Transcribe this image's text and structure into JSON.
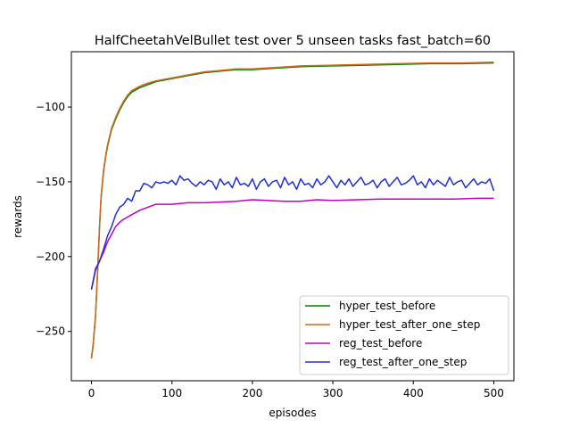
{
  "chart_data": {
    "type": "line",
    "title": "HalfCheetahVelBullet test over 5 unseen tasks fast_batch=60",
    "xlabel": "episodes",
    "ylabel": "rewards",
    "xlim": [
      -25,
      525
    ],
    "ylim": [
      -283,
      -63
    ],
    "xticks": [
      0,
      100,
      200,
      300,
      400,
      500
    ],
    "xtick_labels": [
      "0",
      "100",
      "200",
      "300",
      "400",
      "500"
    ],
    "yticks": [
      -250,
      -200,
      -150,
      -100
    ],
    "ytick_labels": [
      "−250",
      "−200",
      "−150",
      "−100"
    ],
    "grid": false,
    "legend_position": "lower-right",
    "series": [
      {
        "name": "hyper_test_before",
        "color": "#008000",
        "x": [
          0,
          2,
          5,
          8,
          10,
          12,
          15,
          18,
          20,
          25,
          30,
          35,
          40,
          45,
          50,
          60,
          70,
          80,
          90,
          100,
          120,
          140,
          160,
          180,
          200,
          230,
          260,
          300,
          340,
          380,
          420,
          460,
          500
        ],
        "y": [
          -268,
          -260,
          -240,
          -205,
          -180,
          -160,
          -143,
          -132,
          -126,
          -115,
          -108,
          -102,
          -97,
          -93,
          -90,
          -87,
          -85,
          -83,
          -82,
          -81,
          -79,
          -77,
          -76,
          -75,
          -75,
          -74,
          -73,
          -72.5,
          -72,
          -71.5,
          -71,
          -71,
          -70.5
        ]
      },
      {
        "name": "hyper_test_after_one_step",
        "color": "#d2691e",
        "x": [
          0,
          2,
          5,
          8,
          10,
          12,
          15,
          18,
          20,
          25,
          30,
          35,
          40,
          45,
          50,
          60,
          70,
          80,
          90,
          100,
          120,
          140,
          160,
          180,
          200,
          230,
          260,
          300,
          340,
          380,
          420,
          460,
          500
        ],
        "y": [
          -268,
          -259,
          -239,
          -204,
          -179,
          -159,
          -142,
          -131,
          -125,
          -114,
          -107,
          -101,
          -96,
          -92,
          -89,
          -86,
          -84,
          -82.5,
          -81.5,
          -80.5,
          -78.5,
          -76.5,
          -75.5,
          -74.5,
          -74.5,
          -73.5,
          -72.5,
          -72,
          -71.5,
          -71,
          -70.5,
          -70.5,
          -70
        ]
      },
      {
        "name": "reg_test_before",
        "color": "#bf00bf",
        "x": [
          0,
          5,
          10,
          15,
          20,
          25,
          30,
          35,
          40,
          50,
          60,
          70,
          80,
          90,
          100,
          120,
          140,
          160,
          180,
          200,
          220,
          240,
          260,
          280,
          300,
          330,
          360,
          390,
          420,
          450,
          480,
          500
        ],
        "y": [
          -222,
          -208,
          -203,
          -197,
          -190,
          -185,
          -180,
          -177,
          -175,
          -172,
          -169,
          -167,
          -165,
          -165,
          -165,
          -164,
          -164,
          -163.5,
          -163,
          -162,
          -162.5,
          -163,
          -163,
          -162,
          -162.5,
          -162,
          -161.5,
          -161.5,
          -161.5,
          -161.5,
          -161,
          -161
        ]
      },
      {
        "name": "reg_test_after_one_step",
        "color": "#1f30cc",
        "x": [
          0,
          5,
          10,
          15,
          20,
          25,
          30,
          35,
          40,
          45,
          50,
          55,
          60,
          65,
          70,
          75,
          80,
          85,
          90,
          95,
          100,
          105,
          110,
          115,
          120,
          125,
          130,
          135,
          140,
          145,
          150,
          155,
          160,
          165,
          170,
          175,
          180,
          185,
          190,
          195,
          200,
          205,
          210,
          215,
          220,
          225,
          230,
          235,
          240,
          245,
          250,
          255,
          260,
          265,
          270,
          275,
          280,
          285,
          290,
          295,
          300,
          305,
          310,
          315,
          320,
          325,
          330,
          335,
          340,
          345,
          350,
          355,
          360,
          365,
          370,
          375,
          380,
          385,
          390,
          395,
          400,
          405,
          410,
          415,
          420,
          425,
          430,
          435,
          440,
          445,
          450,
          455,
          460,
          465,
          470,
          475,
          480,
          485,
          490,
          495,
          500
        ],
        "y": [
          -222,
          -209,
          -203,
          -195,
          -186,
          -180,
          -172,
          -167,
          -165,
          -161,
          -163,
          -156,
          -156,
          -151,
          -152,
          -154,
          -150,
          -151,
          -150,
          -151,
          -149,
          -152,
          -146,
          -149,
          -148,
          -151,
          -153,
          -150,
          -152,
          -149,
          -150,
          -155,
          -148,
          -152,
          -150,
          -154,
          -147,
          -152,
          -151,
          -153,
          -148,
          -155,
          -150,
          -148,
          -153,
          -150,
          -149,
          -154,
          -147,
          -152,
          -150,
          -155,
          -148,
          -152,
          -151,
          -154,
          -148,
          -152,
          -150,
          -146,
          -150,
          -154,
          -149,
          -152,
          -148,
          -153,
          -150,
          -147,
          -152,
          -151,
          -149,
          -154,
          -150,
          -148,
          -153,
          -150,
          -147,
          -152,
          -151,
          -149,
          -146,
          -152,
          -150,
          -154,
          -148,
          -152,
          -149,
          -151,
          -153,
          -147,
          -152,
          -150,
          -149,
          -154,
          -151,
          -148,
          -152,
          -150,
          -151,
          -148,
          -156
        ]
      }
    ]
  }
}
